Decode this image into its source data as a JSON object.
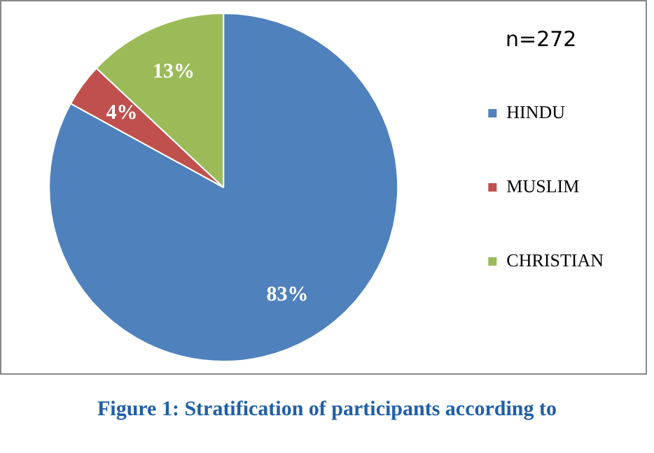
{
  "chart_data": {
    "type": "pie",
    "title": "Figure 1: Stratification of participants according to",
    "categories": [
      "HINDU",
      "MUSLIM",
      "CHRISTIAN"
    ],
    "values": [
      83,
      4,
      13
    ],
    "colors": [
      "#4f81bd",
      "#c0504d",
      "#9bbb59"
    ],
    "data_labels": true,
    "value_labels": [
      "83%",
      "4%",
      "13%"
    ],
    "legend": "right",
    "annotations": [
      "n=272"
    ]
  }
}
